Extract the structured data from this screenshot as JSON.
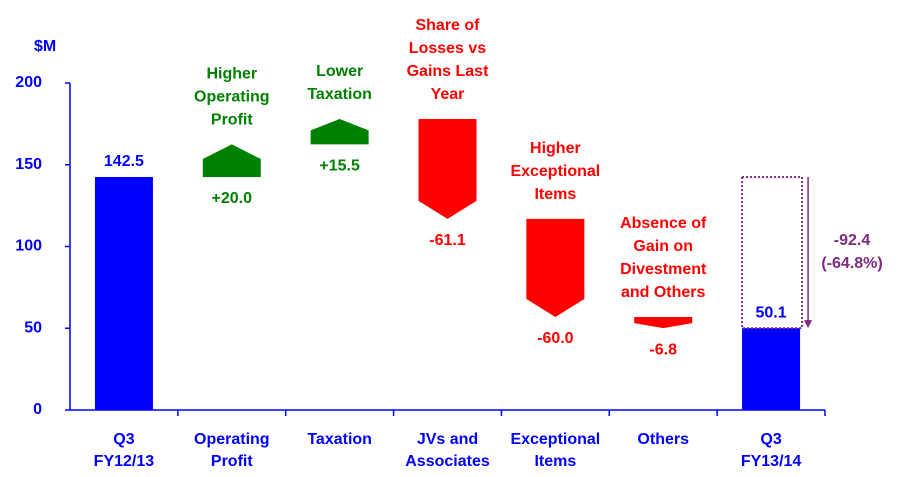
{
  "chart_data": {
    "type": "waterfall",
    "y_axis_label": "$M",
    "categories": [
      [
        "Q3",
        "FY12/13"
      ],
      [
        "Operating",
        "Profit"
      ],
      [
        "Taxation"
      ],
      [
        "JVs and",
        "Associates"
      ],
      [
        "Exceptional",
        "Items"
      ],
      [
        "Others"
      ],
      [
        "Q3",
        "FY13/14"
      ]
    ],
    "kinds": [
      "total",
      "delta",
      "delta",
      "delta",
      "delta",
      "delta",
      "total"
    ],
    "values": [
      142.5,
      20.0,
      15.5,
      -61.1,
      -60.0,
      -6.8,
      50.1
    ],
    "value_labels": [
      "142.5",
      "+20.0",
      "+15.5",
      "-61.1",
      "-60.0",
      "-6.8",
      "50.1"
    ],
    "annotations": [
      null,
      [
        "Higher",
        "Operating",
        "Profit"
      ],
      [
        "Lower",
        "Taxation"
      ],
      [
        "Share of",
        "Losses vs",
        "Gains Last",
        "Year"
      ],
      [
        "Higher",
        "Exceptional",
        "Items"
      ],
      [
        "Absence of",
        "Gain on",
        "Divestment",
        "and Others"
      ],
      null
    ],
    "change_annotation": [
      "-92.4",
      "(-64.8%)"
    ],
    "colors": {
      "total": "#0000ff",
      "increase": "#008000",
      "decrease": "#ff0000",
      "change": "#7f2a7f",
      "axis": "#0000ff"
    },
    "ylim": [
      0,
      200
    ],
    "yticks": [
      0,
      50,
      100,
      150,
      200
    ],
    "grid": false
  }
}
